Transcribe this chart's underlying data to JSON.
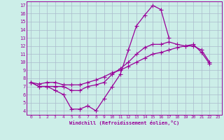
{
  "xlabel": "Windchill (Refroidissement éolien,°C)",
  "bg_color": "#cceee8",
  "line_color": "#990099",
  "grid_color": "#aabbcc",
  "x_data": [
    0,
    1,
    2,
    3,
    4,
    5,
    6,
    7,
    8,
    9,
    10,
    11,
    12,
    13,
    14,
    15,
    16,
    17,
    18,
    19,
    20,
    21,
    22,
    23
  ],
  "series1": [
    7.5,
    7.0,
    7.0,
    6.5,
    6.0,
    4.2,
    4.2,
    4.6,
    4.0,
    5.5,
    7.0,
    8.5,
    11.5,
    14.5,
    15.8,
    17.0,
    16.5,
    13.0,
    null,
    null,
    null,
    null,
    null,
    null
  ],
  "series2": [
    7.5,
    7.0,
    7.0,
    7.0,
    7.0,
    6.5,
    6.5,
    7.0,
    7.2,
    7.5,
    8.5,
    9.2,
    10.0,
    11.0,
    11.8,
    12.2,
    12.2,
    12.5,
    12.2,
    12.0,
    12.0,
    11.5,
    10.0,
    null
  ],
  "series3": [
    7.5,
    7.3,
    7.5,
    7.5,
    7.2,
    7.2,
    7.2,
    7.5,
    7.8,
    8.2,
    8.7,
    9.0,
    9.5,
    10.0,
    10.5,
    11.0,
    11.2,
    11.5,
    11.8,
    12.0,
    12.2,
    11.2,
    9.8,
    null
  ],
  "ylim_min": 3.5,
  "ylim_max": 17.5,
  "xlim_min": -0.5,
  "xlim_max": 23.5,
  "yticks": [
    4,
    5,
    6,
    7,
    8,
    9,
    10,
    11,
    12,
    13,
    14,
    15,
    16,
    17
  ],
  "xticks": [
    0,
    1,
    2,
    3,
    4,
    5,
    6,
    7,
    8,
    9,
    10,
    11,
    12,
    13,
    14,
    15,
    16,
    17,
    18,
    19,
    20,
    21,
    22,
    23
  ],
  "markersize": 2.5,
  "linewidth": 0.9
}
